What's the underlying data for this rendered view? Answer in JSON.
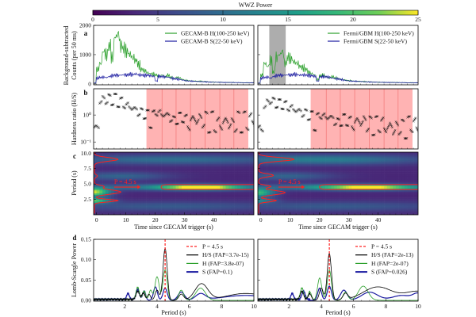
{
  "colorbar": {
    "title": "WWZ Power",
    "ticks": [
      "0",
      "5",
      "10",
      "15",
      "20",
      "25"
    ],
    "range": [
      0,
      25
    ]
  },
  "panel_letters": [
    "a",
    "b",
    "c",
    "d"
  ],
  "colors": {
    "H": "#2ca02c",
    "S": "#1a1aa0",
    "HS": "#000000",
    "period_line": "#ff2020",
    "shade": "#ffb3b3",
    "gray_band": "#999999"
  },
  "chart_data": [
    {
      "id": "a",
      "type": "line",
      "ylabel": [
        "Background-subtracted",
        "Counts (per 50 ms)"
      ],
      "yticks": [
        "0",
        "1000",
        "2000"
      ],
      "ytick_values": [
        0,
        1000,
        2000
      ],
      "ylim": [
        -30,
        2000
      ],
      "xlim": [
        -1,
        53.6
      ],
      "t_start": -1,
      "t_step": 1,
      "left": {
        "legend": [
          "GECAM-B H(100-250 keV)",
          "GECAM-B S(22-50 keV)"
        ],
        "H": [
          30,
          500,
          700,
          1100,
          1000,
          1300,
          900,
          1600,
          1700,
          1300,
          1200,
          1100,
          1000,
          900,
          800,
          650,
          500,
          450,
          380,
          350,
          330,
          300,
          260,
          300,
          250,
          300,
          220,
          180,
          230,
          200,
          150,
          120,
          110,
          100,
          100,
          90,
          90,
          80,
          80,
          70,
          70,
          60,
          60,
          60,
          50,
          50,
          50,
          50,
          45,
          45,
          40,
          40,
          40,
          40,
          40
        ],
        "S": [
          30,
          200,
          220,
          230,
          220,
          250,
          280,
          300,
          290,
          300,
          310,
          300,
          330,
          320,
          340,
          310,
          300,
          290,
          300,
          280,
          260,
          100,
          260,
          250,
          240,
          230,
          200,
          180,
          170,
          150,
          130,
          110,
          100,
          95,
          90,
          85,
          80,
          75,
          70,
          65,
          60,
          60,
          55,
          55,
          50,
          50,
          50,
          50,
          45,
          45,
          45,
          40,
          40,
          40,
          40
        ]
      },
      "right": {
        "legend": [
          "Fermi/GBM H(100-250 keV)",
          "Fermi/GBM S(22-50 keV)"
        ],
        "gray_band_s": [
          2.9,
          8.5
        ],
        "H": [
          30,
          300,
          700,
          600,
          800,
          400,
          900,
          1000,
          1100,
          700,
          900,
          850,
          750,
          700,
          600,
          550,
          500,
          400,
          350,
          300,
          150,
          280,
          300,
          250,
          200,
          250,
          200,
          180,
          160,
          140,
          120,
          110,
          100,
          95,
          90,
          85,
          80,
          75,
          70,
          65,
          60,
          60,
          55,
          55,
          50,
          50,
          50,
          50,
          45,
          45,
          45,
          40,
          40,
          40,
          40
        ],
        "S": [
          30,
          200,
          220,
          230,
          200,
          250,
          280,
          300,
          290,
          300,
          310,
          300,
          330,
          320,
          300,
          310,
          300,
          290,
          280,
          260,
          100,
          240,
          250,
          240,
          230,
          200,
          180,
          170,
          150,
          130,
          110,
          100,
          95,
          90,
          85,
          80,
          75,
          70,
          65,
          60,
          60,
          55,
          55,
          50,
          50,
          50,
          50,
          45,
          45,
          45,
          40,
          40,
          40,
          40,
          40
        ]
      }
    },
    {
      "id": "b",
      "type": "scatter",
      "ylabel": "Hardness ratio (H/S)",
      "yscale": "log",
      "yticks": [
        "10⁰",
        "10⁻¹"
      ],
      "ytick_values": [
        1,
        0.1
      ],
      "ylim": [
        0.055,
        9.4
      ],
      "xlim": [
        -1,
        53.6
      ],
      "shaded_s": [
        17,
        51.7
      ],
      "period_marks_s": [
        22.3,
        27.1,
        32,
        37,
        42,
        46.8
      ],
      "t_start": -1,
      "t_step": 1,
      "left": [
        0.3,
        0.4,
        3,
        4,
        3.5,
        4,
        3.5,
        4,
        3,
        3,
        2.5,
        2.2,
        2,
        1.8,
        1.5,
        1.3,
        1.2,
        1.1,
        1.0,
        0.5,
        1.0,
        1.3,
        1.2,
        1.0,
        1.1,
        0.9,
        0.8,
        0.6,
        0.7,
        0.8,
        0.8,
        0.7,
        0.5,
        0.6,
        0.7,
        0.7,
        0.6,
        0.7,
        0.6,
        0.5,
        0.6,
        0.5,
        0.4,
        0.5,
        0.5,
        0.6,
        0.5,
        0.4,
        0.5,
        0.6,
        0.5,
        0.6,
        0.6,
        0.6,
        0.7
      ],
      "right": [
        0.3,
        0.3,
        2,
        3,
        3.5,
        3,
        2.8,
        2.5,
        2.5,
        2.2,
        2,
        1.8,
        1.6,
        1.5,
        1.3,
        1.2,
        1.1,
        1.0,
        0.9,
        0.4,
        0.8,
        1.0,
        0.9,
        0.8,
        0.9,
        0.7,
        0.6,
        0.5,
        0.6,
        0.7,
        0.6,
        0.6,
        0.5,
        0.5,
        0.6,
        0.6,
        0.5,
        0.5,
        0.4,
        0.4,
        0.4,
        0.5,
        0.4,
        0.4,
        0.3,
        0.4,
        0.3,
        0.3,
        0.4,
        0.3,
        0.3,
        0.4,
        0.5,
        0.4,
        0.4
      ]
    },
    {
      "id": "c",
      "type": "heatmap",
      "ylabel": "Period (s)",
      "xlabel": "Time since GECAM trigger (s)",
      "yticks": [
        "2.5",
        "5.0",
        "7.5",
        "10.0"
      ],
      "ytick_values": [
        2.5,
        5,
        7.5,
        10
      ],
      "ylim": [
        0,
        10.17
      ],
      "xticks": [
        "0",
        "10",
        "20",
        "30",
        "40"
      ],
      "xtick_values": [
        0,
        10,
        20,
        30,
        40
      ],
      "xlim": [
        -1,
        53.6
      ],
      "annotation": "P = 4.5 s",
      "arrow_s": [
        6,
        15
      ],
      "arrow_period": 4.5,
      "left": {
        "background": 3,
        "blobs": [
          {
            "t": -1,
            "P": 3.7,
            "tw": 4,
            "pw": 0.5,
            "amp": 21
          },
          {
            "t": -1,
            "P": 2.3,
            "tw": 4,
            "pw": 0.3,
            "amp": 17
          },
          {
            "t": 36,
            "P": 4.5,
            "tw": 10,
            "pw": 0.3,
            "amp": 21
          },
          {
            "t": 25,
            "P": 4.5,
            "tw": 25,
            "pw": 0.4,
            "amp": 7
          },
          {
            "t": 25,
            "P": 9.0,
            "tw": 30,
            "pw": 0.6,
            "amp": 7
          },
          {
            "t": 8,
            "P": 6.3,
            "tw": 12,
            "pw": 0.5,
            "amp": 6
          },
          {
            "t": 25,
            "P": 1.4,
            "tw": 30,
            "pw": 0.6,
            "amp": 5
          }
        ],
        "avg_profile_peaks": [
          {
            "P": 9.0,
            "w": 0.3,
            "t": 8
          },
          {
            "P": 3.7,
            "w": 0.35,
            "t": 9
          },
          {
            "P": 2.3,
            "w": 0.2,
            "t": 8
          },
          {
            "P": 4.6,
            "w": 0.2,
            "t": 3
          },
          {
            "P": 6.3,
            "w": 0.2,
            "t": 1
          }
        ],
        "contour_s": [
          22,
          53.6
        ],
        "contour_period": [
          4.1,
          4.9
        ]
      },
      "right": {
        "background": 3,
        "blobs": [
          {
            "t": -1,
            "P": 3.6,
            "tw": 4,
            "pw": 0.5,
            "amp": 16
          },
          {
            "t": -1,
            "P": 2.3,
            "tw": 4,
            "pw": 0.3,
            "amp": 9
          },
          {
            "t": 37,
            "P": 4.5,
            "tw": 12,
            "pw": 0.3,
            "amp": 19
          },
          {
            "t": 25,
            "P": 4.5,
            "tw": 25,
            "pw": 0.4,
            "amp": 7
          },
          {
            "t": 20,
            "P": 9.0,
            "tw": 25,
            "pw": 0.6,
            "amp": 9
          },
          {
            "t": 8,
            "P": 6.3,
            "tw": 12,
            "pw": 0.5,
            "amp": 6
          },
          {
            "t": 25,
            "P": 1.4,
            "tw": 30,
            "pw": 0.6,
            "amp": 5
          }
        ],
        "avg_profile_peaks": [
          {
            "P": 9.0,
            "w": 0.3,
            "t": 12
          },
          {
            "P": 3.6,
            "w": 0.35,
            "t": 9
          },
          {
            "P": 2.3,
            "w": 0.2,
            "t": 6
          },
          {
            "P": 6.4,
            "w": 0.25,
            "t": 5
          },
          {
            "P": 4.6,
            "w": 0.2,
            "t": 4
          }
        ],
        "contour_s": [
          20,
          53.6
        ],
        "contour_period": [
          4.1,
          4.9
        ]
      }
    },
    {
      "id": "d",
      "type": "line",
      "ylabel": "Lomb-Scargle Power",
      "xlabel": "Period (s)",
      "yticks": [
        "0.00",
        "0.05",
        "0.10",
        "0.15"
      ],
      "ytick_values": [
        0,
        0.05,
        0.1,
        0.15
      ],
      "ylim": [
        -0.002,
        0.15
      ],
      "xticks": [
        "2",
        "4",
        "6",
        "8",
        "10"
      ],
      "xtick_values": [
        2,
        4,
        6,
        8,
        10
      ],
      "xlim": [
        0.07,
        10
      ],
      "marked_period": 4.5,
      "left": {
        "legend": [
          "P = 4.5 s",
          "H/S (FAP=3.7e-15)",
          "H (FAP=3.8e-07)",
          "S (FAP=0.1)"
        ],
        "HS": [
          [
            2.8,
            0.02,
            0.1
          ],
          [
            3.15,
            0.015,
            0.1
          ],
          [
            3.5,
            0.015,
            0.1
          ],
          [
            4.0,
            0.025,
            0.12
          ],
          [
            4.5,
            0.128,
            0.13
          ],
          [
            5.5,
            0.015,
            0.15
          ],
          [
            6.75,
            0.04,
            0.4
          ],
          [
            9.5,
            0.017,
            1.2
          ]
        ],
        "H": [
          [
            2.8,
            0.03,
            0.1
          ],
          [
            3.2,
            0.02,
            0.1
          ],
          [
            3.6,
            0.025,
            0.1
          ],
          [
            4.0,
            0.058,
            0.13
          ],
          [
            4.5,
            0.075,
            0.13
          ],
          [
            5.5,
            0.025,
            0.15
          ],
          [
            6.7,
            0.03,
            0.3
          ]
        ],
        "S": [
          [
            2.2,
            0.015,
            0.08
          ],
          [
            2.8,
            0.025,
            0.1
          ],
          [
            3.2,
            0.02,
            0.1
          ],
          [
            3.9,
            0.033,
            0.12
          ],
          [
            4.5,
            0.03,
            0.13
          ],
          [
            5.5,
            0.02,
            0.2
          ],
          [
            6.7,
            0.015,
            0.3
          ],
          [
            9.5,
            0.012,
            1.5
          ]
        ]
      },
      "right": {
        "legend": [
          "P = 4.5 s",
          "H/S (FAP=2e-13)",
          "H (FAP=2e-07)",
          "S (FAP=0.026)"
        ],
        "HS": [
          [
            2.8,
            0.02,
            0.1
          ],
          [
            3.3,
            0.015,
            0.1
          ],
          [
            4.0,
            0.03,
            0.12
          ],
          [
            4.5,
            0.115,
            0.13
          ],
          [
            5.5,
            0.015,
            0.15
          ],
          [
            7.5,
            0.033,
            0.9
          ],
          [
            10,
            0.022,
            0.8
          ]
        ],
        "H": [
          [
            2.8,
            0.028,
            0.1
          ],
          [
            3.3,
            0.02,
            0.1
          ],
          [
            3.9,
            0.055,
            0.13
          ],
          [
            4.5,
            0.075,
            0.13
          ],
          [
            5.5,
            0.02,
            0.15
          ],
          [
            6.6,
            0.035,
            0.3
          ]
        ],
        "S": [
          [
            2.2,
            0.015,
            0.08
          ],
          [
            2.9,
            0.02,
            0.1
          ],
          [
            3.9,
            0.03,
            0.12
          ],
          [
            4.5,
            0.035,
            0.13
          ],
          [
            5.4,
            0.025,
            0.2
          ],
          [
            7.0,
            0.02,
            0.5
          ],
          [
            9.0,
            0.012,
            0.6
          ],
          [
            10,
            0.015,
            0.3
          ]
        ]
      }
    }
  ]
}
